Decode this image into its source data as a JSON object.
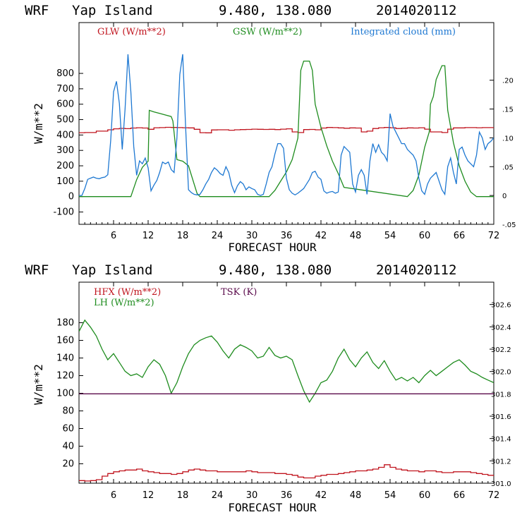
{
  "colors": {
    "glw": "#c0141e",
    "gsw": "#1e8c1e",
    "cloud": "#1e78d2",
    "hfx": "#c0141e",
    "lh": "#1e8c1e",
    "tsk": "#5a0a4b",
    "axis": "#000000"
  },
  "chart_data": [
    {
      "type": "line",
      "header": {
        "model": "WRF",
        "location": "Yap Island",
        "coords": "9.480, 138.080",
        "date": "2014020112"
      },
      "xlabel": "FORECAST HOUR",
      "ylabel": "W/m**2",
      "xlim": [
        0,
        72
      ],
      "xticks": [
        "6",
        "12",
        "18",
        "24",
        "30",
        "36",
        "42",
        "48",
        "54",
        "60",
        "66",
        "72"
      ],
      "ylim": [
        -180,
        1130
      ],
      "yticks": [
        "-100",
        "0",
        "100",
        "200",
        "300",
        "400",
        "500",
        "600",
        "700",
        "800"
      ],
      "right_ylim": [
        -0.05,
        0.3
      ],
      "right_yticks": [
        "-.05",
        "0",
        ".05",
        ".10",
        ".15",
        ".20"
      ],
      "series": [
        {
          "name": "GLW (W/m**2)",
          "axis": "left",
          "x": [
            0,
            1,
            3,
            5,
            6,
            7,
            8,
            9,
            10,
            11,
            12,
            13,
            14,
            15,
            16,
            17,
            18,
            19,
            20,
            21,
            22,
            23,
            24,
            25,
            26,
            27,
            28,
            29,
            30,
            31,
            32,
            33,
            34,
            35,
            36,
            37,
            38,
            39,
            40,
            41,
            42,
            43,
            44,
            45,
            46,
            47,
            48,
            49,
            50,
            51,
            52,
            53,
            54,
            55,
            56,
            57,
            58,
            59,
            60,
            61,
            62,
            63,
            64,
            65,
            66,
            67,
            68,
            69,
            70,
            71,
            72
          ],
          "values": [
            415,
            416,
            425,
            434,
            440,
            443,
            441,
            445,
            447,
            445,
            437,
            447,
            448,
            450,
            449,
            448,
            447,
            446,
            437,
            415,
            414,
            433,
            434,
            434,
            431,
            434,
            435,
            436,
            438,
            437,
            436,
            437,
            435,
            438,
            440,
            420,
            416,
            435,
            436,
            434,
            445,
            449,
            448,
            446,
            444,
            446,
            445,
            420,
            425,
            442,
            447,
            449,
            447,
            442,
            444,
            446,
            445,
            447,
            438,
            420,
            420,
            416,
            438,
            446,
            446,
            448,
            448,
            447,
            448,
            448,
            448
          ]
        },
        {
          "name": "GSW (W/m**2)",
          "axis": "left",
          "x": [
            0,
            6,
            8,
            9,
            10,
            11,
            12,
            12.2,
            13,
            14,
            15,
            16,
            16.3,
            17,
            18,
            19,
            20,
            20.5,
            21,
            24,
            30,
            33,
            34,
            35,
            36,
            37,
            38,
            38.5,
            39,
            40,
            40.5,
            41,
            42,
            43,
            44,
            45,
            46,
            57,
            58,
            59,
            60,
            60.8,
            61,
            61.5,
            62,
            63,
            63.5,
            64,
            65,
            66,
            67,
            68,
            69,
            72
          ],
          "values": [
            0,
            0,
            0,
            0,
            110,
            190,
            230,
            560,
            550,
            540,
            530,
            520,
            490,
            240,
            230,
            200,
            80,
            20,
            0,
            0,
            0,
            0,
            40,
            100,
            160,
            240,
            380,
            820,
            880,
            880,
            820,
            600,
            450,
            330,
            230,
            150,
            60,
            0,
            40,
            140,
            320,
            420,
            600,
            650,
            760,
            850,
            850,
            560,
            350,
            200,
            100,
            30,
            0,
            0
          ]
        },
        {
          "name": "Integrated cloud (mm)",
          "axis": "right",
          "x": [
            0,
            0.5,
            1,
            1.5,
            2,
            2.5,
            3,
            3.5,
            4,
            4.5,
            5,
            5.5,
            6,
            6.5,
            7,
            7.5,
            8,
            8.5,
            9,
            9.5,
            10,
            10.5,
            11,
            11.5,
            12,
            12.5,
            13,
            13.5,
            14,
            14.5,
            15,
            15.5,
            16,
            16.5,
            17,
            17.5,
            18,
            18.5,
            19,
            19.5,
            20,
            20.5,
            21,
            21.5,
            22,
            22.5,
            23,
            23.5,
            24,
            24.5,
            25,
            25.5,
            26,
            26.5,
            27,
            27.5,
            28,
            28.5,
            29,
            29.5,
            30,
            30.5,
            31,
            31.5,
            32,
            32.5,
            33,
            33.5,
            34,
            34.5,
            35,
            35.5,
            36,
            36.5,
            37,
            37.5,
            38,
            38.5,
            39,
            39.5,
            40,
            40.5,
            41,
            41.5,
            42,
            42.5,
            43,
            43.5,
            44,
            44.5,
            45,
            45.5,
            46,
            46.5,
            47,
            47.5,
            48,
            48.5,
            49,
            49.5,
            50,
            50.5,
            51,
            51.5,
            52,
            52.5,
            53,
            53.5,
            54,
            54.5,
            55,
            55.5,
            56,
            56.5,
            57,
            57.5,
            58,
            58.5,
            59,
            59.5,
            60,
            60.5,
            61,
            61.5,
            62,
            62.5,
            63,
            63.5,
            64,
            64.5,
            65,
            65.5,
            66,
            66.5,
            67,
            67.5,
            68,
            68.5,
            69,
            69.5,
            70,
            70.5,
            71,
            71.5,
            72
          ],
          "values": [
            0,
            0,
            0.012,
            0.028,
            0.03,
            0.032,
            0.03,
            0.029,
            0.031,
            0.032,
            0.036,
            0.095,
            0.18,
            0.198,
            0.16,
            0.08,
            0.15,
            0.245,
            0.18,
            0.085,
            0.035,
            0.06,
            0.055,
            0.065,
            0.048,
            0.008,
            0.018,
            0.026,
            0.04,
            0.058,
            0.055,
            0.058,
            0.045,
            0.04,
            0.1,
            0.21,
            0.245,
            0.12,
            0.01,
            0.005,
            0.002,
            0.001,
            0.002,
            0.01,
            0.02,
            0.028,
            0.04,
            0.048,
            0.044,
            0.038,
            0.035,
            0.05,
            0.04,
            0.018,
            0.005,
            0.017,
            0.024,
            0.02,
            0.01,
            0.015,
            0.012,
            0.01,
            0.002,
            0,
            0.002,
            0.02,
            0.04,
            0.05,
            0.072,
            0.09,
            0.09,
            0.082,
            0.03,
            0.01,
            0.004,
            0.001,
            0.004,
            0.008,
            0.012,
            0.02,
            0.028,
            0.04,
            0.042,
            0.032,
            0.028,
            0.008,
            0.004,
            0.006,
            0.007,
            0.004,
            0.006,
            0.07,
            0.085,
            0.08,
            0.075,
            0.02,
            0.006,
            0.035,
            0.045,
            0.035,
            0.002,
            0.06,
            0.09,
            0.075,
            0.088,
            0.075,
            0.07,
            0.06,
            0.142,
            0.12,
            0.11,
            0.1,
            0.09,
            0.09,
            0.08,
            0.075,
            0.07,
            0.06,
            0.03,
            0.008,
            0.002,
            0.02,
            0.03,
            0.035,
            0.04,
            0.025,
            0.01,
            0.002,
            0.05,
            0.065,
            0.04,
            0.02,
            0.08,
            0.084,
            0.07,
            0.06,
            0.055,
            0.05,
            0.07,
            0.11,
            0.1,
            0.08,
            0.09,
            0.094,
            0.1
          ]
        }
      ]
    },
    {
      "type": "line",
      "header": {
        "model": "WRF",
        "location": "Yap Island",
        "coords": "9.480, 138.080",
        "date": "2014020112"
      },
      "xlabel": "FORECAST HOUR",
      "ylabel": "W/m**2",
      "xlim": [
        0,
        72
      ],
      "xticks": [
        "6",
        "12",
        "18",
        "24",
        "30",
        "36",
        "42",
        "48",
        "54",
        "60",
        "66",
        "72"
      ],
      "ylim": [
        -2,
        226
      ],
      "yticks": [
        "20",
        "40",
        "60",
        "80",
        "100",
        "120",
        "140",
        "160",
        "180"
      ],
      "right_ylim": [
        301.0,
        302.8
      ],
      "right_yticks": [
        "301.0",
        "301.2",
        "301.4",
        "301.6",
        "301.8",
        "302.0",
        "302.2",
        "302.4",
        "302.6"
      ],
      "series": [
        {
          "name": "HFX (W/m**2)",
          "axis": "left",
          "x": [
            0,
            1,
            2,
            3,
            4,
            5,
            6,
            7,
            8,
            9,
            10,
            11,
            12,
            13,
            14,
            15,
            16,
            17,
            18,
            19,
            20,
            21,
            22,
            23,
            24,
            25,
            26,
            27,
            28,
            29,
            30,
            31,
            32,
            33,
            34,
            35,
            36,
            37,
            38,
            39,
            40,
            41,
            42,
            43,
            44,
            45,
            46,
            47,
            48,
            49,
            50,
            51,
            52,
            53,
            54,
            55,
            56,
            57,
            58,
            59,
            60,
            61,
            62,
            63,
            64,
            65,
            66,
            67,
            68,
            69,
            70,
            71,
            72
          ],
          "values": [
            1,
            0.5,
            1,
            2,
            6,
            9,
            11,
            12,
            13,
            13,
            14,
            12,
            11,
            10,
            9,
            9,
            8,
            9,
            11,
            13,
            14,
            13,
            12,
            12,
            11,
            11,
            11,
            11,
            11,
            12,
            11,
            10,
            10,
            10,
            9,
            9,
            8,
            7,
            5,
            4,
            4,
            6,
            7,
            8,
            8,
            9,
            10,
            11,
            12,
            12,
            13,
            14,
            16,
            19,
            16,
            14,
            13,
            12,
            12,
            11,
            12,
            12,
            11,
            10,
            10,
            11,
            11,
            11,
            10,
            9,
            8,
            7,
            6
          ]
        },
        {
          "name": "LH (W/m**2)",
          "axis": "left",
          "x": [
            0,
            1,
            2,
            3,
            4,
            5,
            6,
            7,
            8,
            9,
            10,
            11,
            12,
            13,
            14,
            15,
            16,
            17,
            18,
            19,
            20,
            21,
            22,
            23,
            24,
            25,
            26,
            27,
            28,
            29,
            30,
            31,
            32,
            33,
            34,
            35,
            36,
            37,
            38,
            39,
            40,
            41,
            42,
            43,
            44,
            45,
            46,
            47,
            48,
            49,
            50,
            51,
            52,
            53,
            54,
            55,
            56,
            57,
            58,
            59,
            60,
            61,
            62,
            63,
            64,
            65,
            66,
            67,
            68,
            69,
            70,
            71,
            72
          ],
          "values": [
            170,
            183,
            175,
            165,
            150,
            138,
            145,
            135,
            125,
            120,
            122,
            118,
            130,
            138,
            133,
            120,
            100,
            112,
            130,
            145,
            155,
            160,
            163,
            165,
            158,
            148,
            140,
            150,
            155,
            152,
            148,
            140,
            142,
            152,
            143,
            140,
            142,
            138,
            120,
            103,
            90,
            100,
            112,
            115,
            125,
            140,
            150,
            138,
            130,
            140,
            147,
            135,
            128,
            137,
            125,
            115,
            118,
            114,
            118,
            112,
            120,
            126,
            120,
            125,
            130,
            135,
            138,
            132,
            125,
            122,
            118,
            115,
            112
          ]
        },
        {
          "name": "TSK (K)",
          "axis": "right",
          "x": [
            0,
            72
          ],
          "values": [
            301.8,
            301.8
          ]
        }
      ]
    }
  ]
}
